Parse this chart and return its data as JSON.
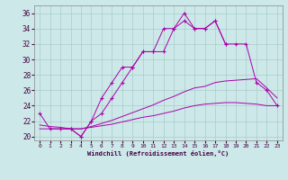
{
  "title": "Windchill (Refroidissement éolien,°C)",
  "bg_color": "#cce8e8",
  "line_color": "#aa00aa",
  "grid_color": "#aacccc",
  "xlim": [
    -0.5,
    23.5
  ],
  "ylim": [
    19.5,
    37.0
  ],
  "xticks": [
    0,
    1,
    2,
    3,
    4,
    5,
    6,
    7,
    8,
    9,
    10,
    11,
    12,
    13,
    14,
    15,
    16,
    17,
    18,
    19,
    20,
    21,
    22,
    23
  ],
  "yticks": [
    20,
    22,
    24,
    26,
    28,
    30,
    32,
    34,
    36
  ],
  "line1_x": [
    0,
    1,
    2,
    3,
    4,
    5,
    6,
    7,
    8,
    9,
    10,
    11,
    12,
    13,
    14,
    15,
    16,
    17,
    18
  ],
  "line1_y": [
    23,
    21,
    21,
    21,
    20,
    22,
    25,
    27,
    29,
    29,
    31,
    31,
    31,
    34,
    35,
    34,
    34,
    35,
    32
  ],
  "line2_x": [
    3,
    4,
    5,
    6,
    7,
    8,
    9,
    10,
    11,
    12,
    13,
    14,
    15,
    16,
    17,
    18,
    19,
    20,
    21,
    22,
    23
  ],
  "line2_y": [
    21,
    20,
    22,
    23,
    25,
    27,
    29,
    31,
    31,
    34,
    34,
    36,
    34,
    34,
    35,
    32,
    32,
    32,
    27,
    26,
    24
  ],
  "line3_x": [
    0,
    1,
    2,
    3,
    4,
    5,
    6,
    7,
    8,
    9,
    10,
    11,
    12,
    13,
    14,
    15,
    16,
    17,
    18,
    19,
    20,
    21,
    22,
    23
  ],
  "line3_y": [
    21.5,
    21.3,
    21.2,
    21.0,
    21.0,
    21.3,
    21.7,
    22.1,
    22.6,
    23.1,
    23.6,
    24.1,
    24.7,
    25.2,
    25.8,
    26.3,
    26.5,
    27.0,
    27.2,
    27.3,
    27.4,
    27.5,
    26.3,
    25.0
  ],
  "line4_x": [
    0,
    1,
    2,
    3,
    4,
    5,
    6,
    7,
    8,
    9,
    10,
    11,
    12,
    13,
    14,
    15,
    16,
    17,
    18,
    19,
    20,
    21,
    22,
    23
  ],
  "line4_y": [
    21.0,
    21.0,
    21.0,
    21.0,
    21.0,
    21.2,
    21.4,
    21.6,
    21.9,
    22.2,
    22.5,
    22.7,
    23.0,
    23.3,
    23.7,
    24.0,
    24.2,
    24.3,
    24.4,
    24.4,
    24.3,
    24.2,
    24.0,
    24.0
  ]
}
